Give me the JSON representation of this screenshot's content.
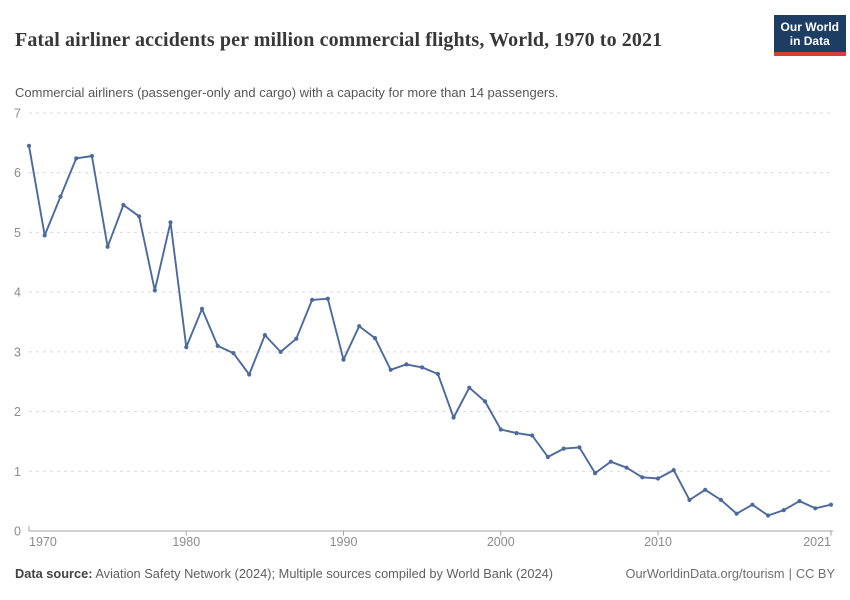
{
  "header": {
    "title": "Fatal airliner accidents per million commercial flights, World, 1970 to 2021",
    "subtitle": "Commercial airliners (passenger-only and cargo) with a capacity for more than 14 passengers.",
    "logo": {
      "line1": "Our World",
      "line2": "in Data"
    }
  },
  "chart_data": {
    "type": "line",
    "title": "Fatal airliner accidents per million commercial flights",
    "series_name": "World",
    "x": [
      1970,
      1971,
      1972,
      1973,
      1974,
      1975,
      1976,
      1977,
      1978,
      1979,
      1980,
      1981,
      1982,
      1983,
      1984,
      1985,
      1986,
      1987,
      1988,
      1989,
      1990,
      1991,
      1992,
      1993,
      1994,
      1995,
      1996,
      1997,
      1998,
      1999,
      2000,
      2001,
      2002,
      2003,
      2004,
      2005,
      2006,
      2007,
      2008,
      2009,
      2010,
      2011,
      2012,
      2013,
      2014,
      2015,
      2016,
      2017,
      2018,
      2019,
      2020,
      2021
    ],
    "values": [
      6.45,
      4.95,
      5.6,
      6.24,
      6.28,
      4.76,
      5.46,
      5.27,
      4.03,
      5.17,
      3.08,
      3.72,
      3.1,
      2.98,
      2.62,
      3.28,
      3.0,
      3.22,
      3.87,
      3.89,
      2.87,
      3.43,
      3.23,
      2.7,
      2.79,
      2.74,
      2.63,
      1.9,
      2.4,
      2.17,
      1.7,
      1.64,
      1.6,
      1.24,
      1.38,
      1.4,
      0.97,
      1.16,
      1.06,
      0.9,
      0.88,
      1.02,
      0.52,
      0.69,
      0.52,
      0.29,
      0.44,
      0.26,
      0.35,
      0.5,
      0.38,
      0.44
    ],
    "xlabel": "",
    "ylabel": "",
    "ylim": [
      0,
      7
    ],
    "yticks": [
      0,
      1,
      2,
      3,
      4,
      5,
      6,
      7
    ],
    "xtick_labels": [
      "1970",
      "1980",
      "1990",
      "2000",
      "2010",
      "2021"
    ],
    "xtick_years": [
      1970,
      1980,
      1990,
      2000,
      2010,
      2021
    ],
    "grid": true,
    "legend": "none",
    "line_color": "#4C6A9C",
    "grid_color": "#d9d9d9",
    "axis_color": "#a3a3a3",
    "tick_text_color": "#8c8c8c"
  },
  "footer": {
    "source_label": "Data source:",
    "source_text": " Aviation Safety Network (2024); Multiple sources compiled by World Bank (2024)",
    "link_text": "OurWorldinData.org/tourism",
    "separator": "|",
    "license_text": "CC BY"
  }
}
